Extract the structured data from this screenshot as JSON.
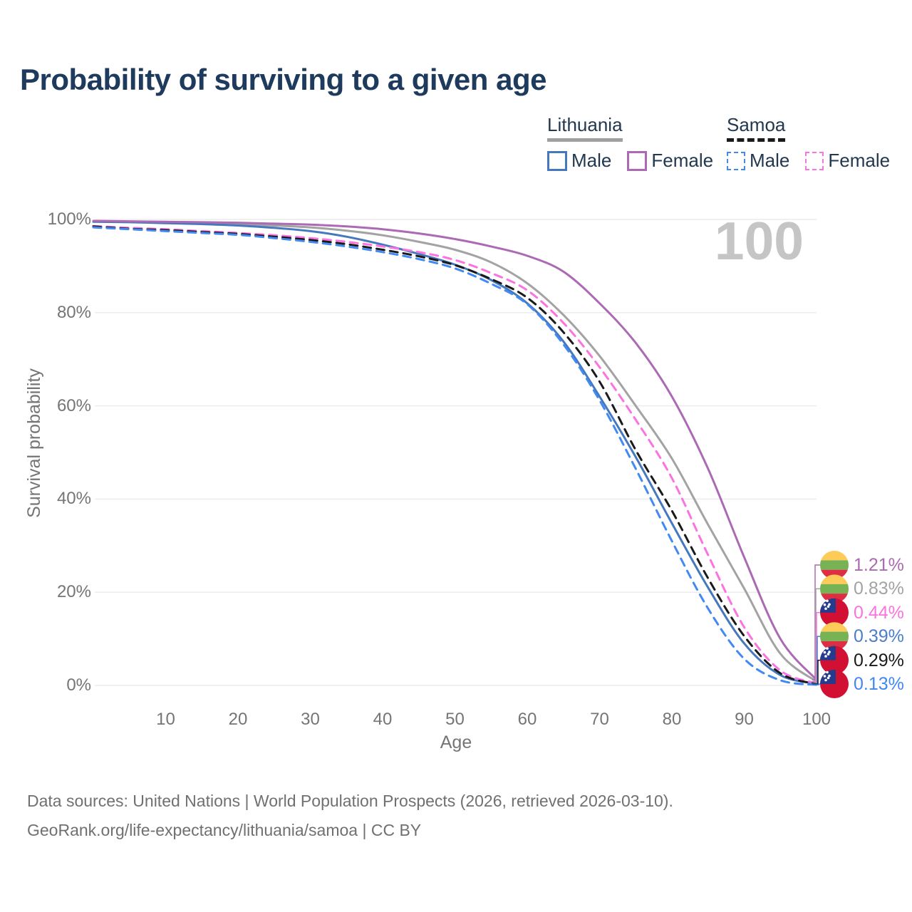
{
  "title": "Probability of surviving to a given age",
  "watermark": "100",
  "legend": {
    "groups": [
      {
        "name": "Lithuania",
        "line_style": "solid",
        "line_color": "#a0a0a0",
        "items": [
          {
            "label": "Male",
            "color": "#4678bd",
            "dash": false
          },
          {
            "label": "Female",
            "color": "#ab6ab3",
            "dash": false
          }
        ]
      },
      {
        "name": "Samoa",
        "line_style": "dashed",
        "line_color": "#1a1a1a",
        "items": [
          {
            "label": "Male",
            "color": "#4289f2",
            "dash": true
          },
          {
            "label": "Female",
            "color": "#fb73e0",
            "dash": true
          }
        ]
      }
    ]
  },
  "chart_data": {
    "type": "line",
    "title": "Probability of surviving to a given age",
    "xlabel": "Age",
    "ylabel": "Survival probability",
    "xlim": [
      0,
      100
    ],
    "ylim": [
      0,
      100
    ],
    "xticks": [
      10,
      20,
      30,
      40,
      50,
      60,
      70,
      80,
      90,
      100
    ],
    "yticks_pct": [
      0,
      20,
      40,
      60,
      80,
      100
    ],
    "ytick_suffix": "%",
    "grid": "horizontal",
    "legend_position": "top-right",
    "x_ages": [
      0,
      5,
      10,
      15,
      20,
      25,
      30,
      35,
      40,
      45,
      50,
      55,
      60,
      65,
      70,
      75,
      80,
      85,
      90,
      95,
      100
    ],
    "series": [
      {
        "name": "Lithuania Both sexes",
        "country": "Lithuania",
        "sex": "Both",
        "color": "#a3a3a3",
        "dash": false,
        "values": [
          99.6,
          99.5,
          99.4,
          99.3,
          99.0,
          98.7,
          98.3,
          97.6,
          96.6,
          95.2,
          93.5,
          90.8,
          86.3,
          79.5,
          70.7,
          60.0,
          48.7,
          34.5,
          20.8,
          6.8,
          0.83
        ]
      },
      {
        "name": "Lithuania Male",
        "country": "Lithuania",
        "sex": "Male",
        "color": "#4678bd",
        "dash": false,
        "values": [
          99.5,
          99.4,
          99.2,
          99.0,
          98.7,
          98.2,
          97.5,
          96.3,
          94.6,
          92.6,
          90.3,
          87.0,
          82.0,
          73.8,
          62.0,
          49.0,
          34.8,
          21.0,
          9.0,
          2.2,
          0.39
        ]
      },
      {
        "name": "Lithuania Female",
        "country": "Lithuania",
        "sex": "Female",
        "color": "#ab6ab3",
        "dash": false,
        "values": [
          99.7,
          99.6,
          99.5,
          99.4,
          99.3,
          99.1,
          98.9,
          98.5,
          97.9,
          97.0,
          95.8,
          94.2,
          92.2,
          88.8,
          82.0,
          73.5,
          62.0,
          46.5,
          27.5,
          10.0,
          1.21
        ]
      },
      {
        "name": "Samoa Female",
        "country": "Samoa",
        "sex": "Female",
        "color": "#fb73e0",
        "dash": true,
        "values": [
          98.6,
          98.2,
          97.9,
          97.5,
          97.1,
          96.6,
          96.0,
          95.2,
          94.2,
          93.0,
          91.3,
          88.5,
          84.8,
          77.8,
          68.3,
          57.0,
          44.5,
          28.0,
          12.5,
          3.2,
          0.44
        ]
      },
      {
        "name": "Samoa Both sexes",
        "country": "Samoa",
        "sex": "Both",
        "color": "#1a1a1a",
        "dash": true,
        "values": [
          98.5,
          98.0,
          97.7,
          97.3,
          96.9,
          96.3,
          95.6,
          94.7,
          93.5,
          92.1,
          90.2,
          87.2,
          83.2,
          75.8,
          65.2,
          50.5,
          37.5,
          23.0,
          10.6,
          2.6,
          0.29
        ]
      },
      {
        "name": "Samoa Male",
        "country": "Samoa",
        "sex": "Male",
        "color": "#4289f2",
        "dash": true,
        "values": [
          98.3,
          97.9,
          97.5,
          97.1,
          96.7,
          96.0,
          95.2,
          94.2,
          93.0,
          91.5,
          89.5,
          86.2,
          81.8,
          73.2,
          61.2,
          46.5,
          31.0,
          16.5,
          5.7,
          1.1,
          0.13
        ]
      }
    ],
    "end_labels": [
      {
        "text": "1.21%",
        "value": 1.21,
        "series": "Lithuania Female",
        "flag": "lithuania",
        "color": "#ab6ab3"
      },
      {
        "text": "0.83%",
        "value": 0.83,
        "series": "Lithuania Both sexes",
        "flag": "lithuania",
        "color": "#a3a3a3"
      },
      {
        "text": "0.44%",
        "value": 0.44,
        "series": "Samoa Female",
        "flag": "samoa",
        "color": "#fb73e0"
      },
      {
        "text": "0.39%",
        "value": 0.39,
        "series": "Lithuania Male",
        "flag": "lithuania",
        "color": "#4a7ec9"
      },
      {
        "text": "0.29%",
        "value": 0.29,
        "series": "Samoa Both sexes",
        "flag": "samoa",
        "color": "#1a1a1a"
      },
      {
        "text": "0.13%",
        "value": 0.13,
        "series": "Samoa Male",
        "flag": "samoa",
        "color": "#4187f3"
      }
    ],
    "flag_colors": {
      "lithuania": {
        "yellow": "#FDCB58",
        "green": "#77B255",
        "red": "#DD2E44"
      },
      "samoa": {
        "field": "#D21034",
        "canton": "#243B8E",
        "stars": "#ffffff"
      }
    }
  },
  "footer": {
    "line1": "Data sources: United Nations | World Population Prospects (2026, retrieved 2026-03-10).",
    "line2": "GeoRank.org/life-expectancy/lithuania/samoa | CC BY"
  }
}
